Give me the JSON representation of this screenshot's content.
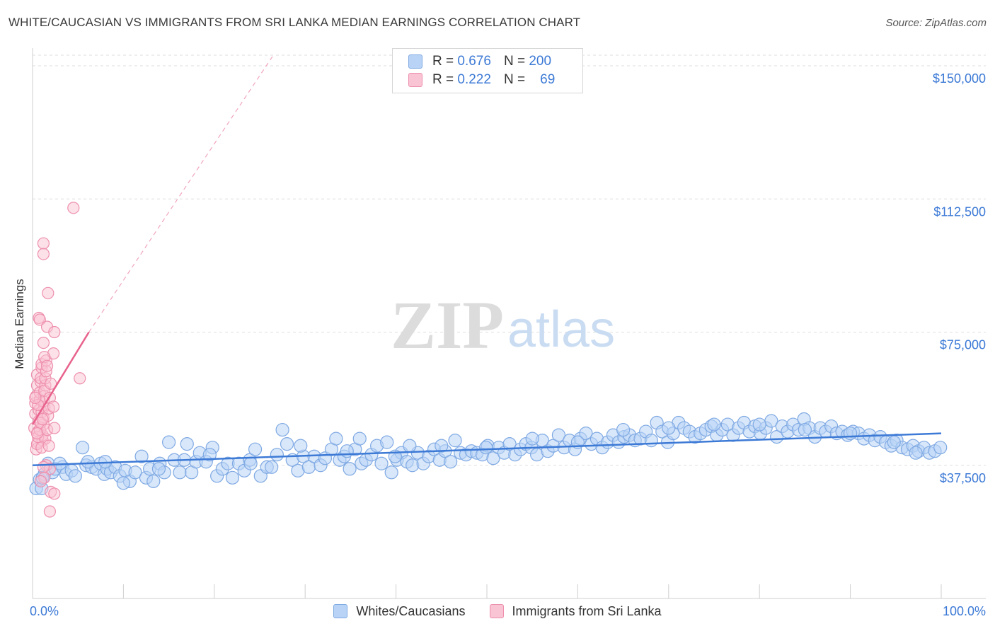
{
  "header": {
    "title": "WHITE/CAUCASIAN VS IMMIGRANTS FROM SRI LANKA MEDIAN EARNINGS CORRELATION CHART",
    "source": "Source: ZipAtlas.com"
  },
  "watermark": {
    "zip": "ZIP",
    "atlas": "atlas"
  },
  "stats": [
    {
      "r_label": "R =",
      "r": "0.676",
      "n_label": "N =",
      "n": "200",
      "fill": "#b8d3f5",
      "stroke": "#7fa9e3"
    },
    {
      "r_label": "R =",
      "r": "0.222",
      "n_label": "N =",
      "n": "69",
      "fill": "#f9c4d4",
      "stroke": "#ee8fad"
    }
  ],
  "legend": [
    {
      "label": "Whites/Caucasians",
      "fill": "#b8d3f5",
      "stroke": "#7fa9e3"
    },
    {
      "label": "Immigrants from Sri Lanka",
      "fill": "#f9c4d4",
      "stroke": "#ee8fad"
    }
  ],
  "chart_data": {
    "type": "scatter",
    "title": "WHITE/CAUCASIAN VS IMMIGRANTS FROM SRI LANKA MEDIAN EARNINGS CORRELATION CHART",
    "xlabel": "",
    "ylabel": "Median Earnings",
    "xlim": [
      0,
      100
    ],
    "ylim": [
      0,
      153000
    ],
    "x_tick_labels": [
      "0.0%",
      "100.0%"
    ],
    "y_ticks": [
      37500,
      75000,
      112500,
      150000
    ],
    "y_tick_labels": [
      "$37,500",
      "$75,000",
      "$112,500",
      "$150,000"
    ],
    "grid": true,
    "colors": {
      "blue": "#3d7ad6",
      "pink": "#e8628c"
    },
    "series": [
      {
        "name": "Whites/Caucasians",
        "r": 0.676,
        "n": 200,
        "trend": {
          "x": [
            0,
            100
          ],
          "y": [
            37500,
            46500
          ],
          "style": "solid"
        },
        "points": [
          [
            0.4,
            31000
          ],
          [
            0.8,
            33500
          ],
          [
            1.0,
            31000
          ],
          [
            1.3,
            35000
          ],
          [
            1.7,
            38000
          ],
          [
            2.2,
            35500
          ],
          [
            2.5,
            36500
          ],
          [
            3.3,
            37000
          ],
          [
            3.7,
            35000
          ],
          [
            4.3,
            36000
          ],
          [
            4.7,
            34500
          ],
          [
            5.5,
            42500
          ],
          [
            5.9,
            37500
          ],
          [
            6.5,
            37000
          ],
          [
            7.0,
            36500
          ],
          [
            7.5,
            38000
          ],
          [
            7.9,
            35000
          ],
          [
            8.2,
            36500
          ],
          [
            8.6,
            35500
          ],
          [
            9.1,
            37000
          ],
          [
            9.6,
            34500
          ],
          [
            10.2,
            36000
          ],
          [
            10.7,
            33000
          ],
          [
            11.3,
            35500
          ],
          [
            12.0,
            40000
          ],
          [
            12.5,
            34000
          ],
          [
            12.9,
            36500
          ],
          [
            13.3,
            33000
          ],
          [
            14.0,
            38000
          ],
          [
            14.5,
            35500
          ],
          [
            15.0,
            44000
          ],
          [
            15.6,
            39000
          ],
          [
            16.2,
            35500
          ],
          [
            16.7,
            39000
          ],
          [
            17.0,
            43500
          ],
          [
            17.5,
            35500
          ],
          [
            18.0,
            38500
          ],
          [
            18.4,
            41000
          ],
          [
            19.1,
            38500
          ],
          [
            19.8,
            42500
          ],
          [
            20.3,
            34500
          ],
          [
            20.9,
            36500
          ],
          [
            21.5,
            38000
          ],
          [
            22.0,
            34000
          ],
          [
            22.7,
            38000
          ],
          [
            23.3,
            36000
          ],
          [
            23.9,
            39000
          ],
          [
            24.5,
            42000
          ],
          [
            25.1,
            34500
          ],
          [
            25.8,
            37000
          ],
          [
            26.3,
            37000
          ],
          [
            26.9,
            40500
          ],
          [
            27.5,
            47500
          ],
          [
            28.0,
            43500
          ],
          [
            28.6,
            39000
          ],
          [
            29.2,
            36000
          ],
          [
            29.8,
            40000
          ],
          [
            30.4,
            37000
          ],
          [
            31.0,
            40000
          ],
          [
            31.7,
            37500
          ],
          [
            32.2,
            39500
          ],
          [
            32.9,
            42000
          ],
          [
            33.4,
            45000
          ],
          [
            33.8,
            39000
          ],
          [
            34.3,
            40000
          ],
          [
            34.9,
            36500
          ],
          [
            35.5,
            42000
          ],
          [
            36.2,
            38000
          ],
          [
            36.7,
            39000
          ],
          [
            37.3,
            40500
          ],
          [
            37.9,
            43000
          ],
          [
            38.4,
            38000
          ],
          [
            39.0,
            44000
          ],
          [
            39.5,
            35500
          ],
          [
            40.1,
            39000
          ],
          [
            40.6,
            41000
          ],
          [
            41.2,
            38500
          ],
          [
            41.8,
            37500
          ],
          [
            42.4,
            41000
          ],
          [
            43.0,
            38000
          ],
          [
            43.6,
            40000
          ],
          [
            44.2,
            42000
          ],
          [
            44.8,
            39000
          ],
          [
            45.4,
            41500
          ],
          [
            46.0,
            38500
          ],
          [
            46.5,
            44500
          ],
          [
            47.1,
            41000
          ],
          [
            47.7,
            40500
          ],
          [
            48.3,
            41500
          ],
          [
            48.9,
            41000
          ],
          [
            49.5,
            40500
          ],
          [
            50.1,
            43000
          ],
          [
            50.7,
            39500
          ],
          [
            51.3,
            42500
          ],
          [
            51.9,
            41000
          ],
          [
            52.5,
            43500
          ],
          [
            53.1,
            40500
          ],
          [
            53.7,
            42000
          ],
          [
            54.3,
            43500
          ],
          [
            54.9,
            42500
          ],
          [
            55.5,
            40500
          ],
          [
            56.1,
            44500
          ],
          [
            56.7,
            41500
          ],
          [
            57.3,
            43000
          ],
          [
            57.9,
            46000
          ],
          [
            58.5,
            42500
          ],
          [
            59.1,
            44500
          ],
          [
            59.7,
            42000
          ],
          [
            60.3,
            45000
          ],
          [
            60.9,
            46500
          ],
          [
            61.5,
            43500
          ],
          [
            62.1,
            45000
          ],
          [
            62.7,
            42500
          ],
          [
            63.3,
            44000
          ],
          [
            63.9,
            46000
          ],
          [
            64.5,
            44000
          ],
          [
            65.1,
            45500
          ],
          [
            65.7,
            46000
          ],
          [
            66.3,
            44500
          ],
          [
            66.9,
            45000
          ],
          [
            67.5,
            47000
          ],
          [
            68.1,
            44500
          ],
          [
            68.7,
            49500
          ],
          [
            69.3,
            47000
          ],
          [
            69.9,
            44000
          ],
          [
            70.5,
            46500
          ],
          [
            71.1,
            49500
          ],
          [
            71.7,
            48000
          ],
          [
            72.3,
            47000
          ],
          [
            72.9,
            45500
          ],
          [
            73.5,
            46500
          ],
          [
            74.1,
            47500
          ],
          [
            74.7,
            48500
          ],
          [
            75.3,
            46000
          ],
          [
            75.9,
            47500
          ],
          [
            76.5,
            49000
          ],
          [
            77.1,
            46000
          ],
          [
            77.7,
            48000
          ],
          [
            78.3,
            49500
          ],
          [
            78.9,
            47000
          ],
          [
            79.5,
            48500
          ],
          [
            80.1,
            46500
          ],
          [
            80.7,
            48000
          ],
          [
            81.3,
            50000
          ],
          [
            81.9,
            45500
          ],
          [
            82.5,
            48500
          ],
          [
            83.1,
            47000
          ],
          [
            83.7,
            49000
          ],
          [
            84.3,
            47500
          ],
          [
            84.9,
            50500
          ],
          [
            85.5,
            48000
          ],
          [
            86.1,
            45500
          ],
          [
            86.7,
            48000
          ],
          [
            87.3,
            47000
          ],
          [
            87.9,
            48500
          ],
          [
            88.5,
            46500
          ],
          [
            89.1,
            47000
          ],
          [
            89.7,
            46000
          ],
          [
            90.3,
            47000
          ],
          [
            90.9,
            46500
          ],
          [
            91.5,
            45000
          ],
          [
            92.1,
            46000
          ],
          [
            92.7,
            44500
          ],
          [
            93.3,
            45500
          ],
          [
            93.9,
            44000
          ],
          [
            94.5,
            43000
          ],
          [
            95.1,
            44500
          ],
          [
            95.7,
            42500
          ],
          [
            96.3,
            42000
          ],
          [
            96.9,
            43000
          ],
          [
            97.5,
            41500
          ],
          [
            98.1,
            42500
          ],
          [
            98.7,
            41000
          ],
          [
            99.3,
            41500
          ],
          [
            99.9,
            42500
          ],
          [
            3.0,
            38000
          ],
          [
            8.0,
            38500
          ],
          [
            13.9,
            36500
          ],
          [
            19.5,
            40500
          ],
          [
            24.0,
            38000
          ],
          [
            29.5,
            43000
          ],
          [
            34.6,
            41500
          ],
          [
            39.9,
            40000
          ],
          [
            45.0,
            43000
          ],
          [
            49.9,
            42500
          ],
          [
            55.0,
            45000
          ],
          [
            60.0,
            44000
          ],
          [
            65.0,
            47500
          ],
          [
            70.0,
            48000
          ],
          [
            75.0,
            49000
          ],
          [
            80.0,
            49000
          ],
          [
            85.0,
            47500
          ],
          [
            90.0,
            46500
          ],
          [
            94.8,
            44000
          ],
          [
            97.2,
            41000
          ],
          [
            1.1,
            34000
          ],
          [
            6.1,
            38500
          ],
          [
            10.0,
            32500
          ],
          [
            36.0,
            45000
          ],
          [
            41.5,
            43000
          ]
        ]
      },
      {
        "name": "Immigrants from Sri Lanka",
        "r": 0.222,
        "n": 69,
        "trend": {
          "x": [
            0,
            6.2
          ],
          "y": [
            49000,
            75000
          ],
          "style": "solid"
        },
        "trend_ext": {
          "x": [
            6.2,
            26.5
          ],
          "y": [
            75000,
            153000
          ],
          "style": "dashed"
        },
        "points": [
          [
            0.2,
            48000
          ],
          [
            0.3,
            52000
          ],
          [
            0.3,
            55000
          ],
          [
            0.4,
            57000
          ],
          [
            0.5,
            60000
          ],
          [
            0.5,
            63000
          ],
          [
            0.6,
            47000
          ],
          [
            0.6,
            44000
          ],
          [
            0.7,
            50000
          ],
          [
            0.7,
            53000
          ],
          [
            0.8,
            56000
          ],
          [
            0.8,
            58000
          ],
          [
            0.9,
            61000
          ],
          [
            0.9,
            62000
          ],
          [
            1.0,
            65000
          ],
          [
            1.0,
            66000
          ],
          [
            1.1,
            44500
          ],
          [
            1.1,
            46000
          ],
          [
            1.2,
            49000
          ],
          [
            1.2,
            51000
          ],
          [
            1.3,
            54000
          ],
          [
            1.3,
            57000
          ],
          [
            1.4,
            60000
          ],
          [
            1.4,
            62000
          ],
          [
            1.5,
            64000
          ],
          [
            1.5,
            67000
          ],
          [
            0.4,
            42000
          ],
          [
            0.5,
            43500
          ],
          [
            0.6,
            45500
          ],
          [
            0.8,
            47500
          ],
          [
            0.9,
            49500
          ],
          [
            1.0,
            52500
          ],
          [
            1.2,
            55500
          ],
          [
            1.3,
            58500
          ],
          [
            1.4,
            45000
          ],
          [
            1.6,
            47500
          ],
          [
            1.7,
            51500
          ],
          [
            1.8,
            53500
          ],
          [
            1.9,
            56500
          ],
          [
            2.0,
            60500
          ],
          [
            0.7,
            79000
          ],
          [
            0.8,
            78500
          ],
          [
            1.2,
            72000
          ],
          [
            1.6,
            76500
          ],
          [
            2.4,
            75000
          ],
          [
            2.3,
            69000
          ],
          [
            1.3,
            68000
          ],
          [
            1.7,
            86000
          ],
          [
            1.2,
            100000
          ],
          [
            1.2,
            97000
          ],
          [
            4.5,
            110000
          ],
          [
            5.2,
            62000
          ],
          [
            1.5,
            37500
          ],
          [
            1.9,
            36500
          ],
          [
            2.0,
            30000
          ],
          [
            1.9,
            24500
          ],
          [
            2.4,
            29500
          ],
          [
            1.3,
            34000
          ],
          [
            0.9,
            33000
          ],
          [
            1.0,
            42500
          ],
          [
            1.1,
            50500
          ],
          [
            0.6,
            54500
          ],
          [
            0.3,
            56500
          ],
          [
            1.6,
            65500
          ],
          [
            2.3,
            54000
          ],
          [
            2.4,
            48000
          ],
          [
            1.8,
            43000
          ],
          [
            1.2,
            37000
          ],
          [
            0.5,
            46500
          ]
        ]
      }
    ]
  }
}
